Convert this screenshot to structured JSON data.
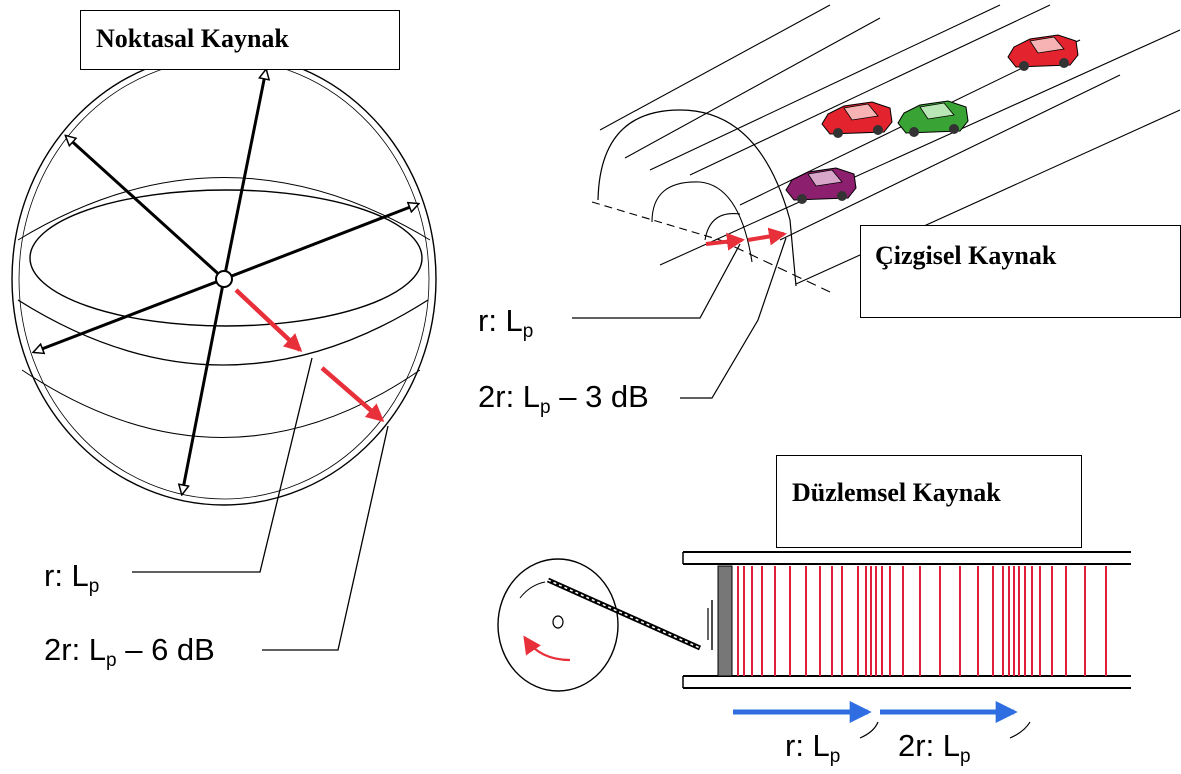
{
  "titles": {
    "point": "Noktasal Kaynak",
    "line": "Çizgisel Kaynak",
    "plane": "Düzlemsel Kaynak"
  },
  "point_labels": {
    "near_prefix": "r: L",
    "near_sub": "p",
    "far_prefix": "2r: L",
    "far_sub": "p",
    "far_suffix": " – 6 dB"
  },
  "line_labels": {
    "near_prefix": "r: L",
    "near_sub": "p",
    "far_prefix": "2r: L",
    "far_sub": "p",
    "far_suffix": " – 3 dB"
  },
  "plane_labels": {
    "near_prefix": "r: L",
    "near_sub": "p",
    "far_prefix": "2r: L",
    "far_sub": "p"
  },
  "colors": {
    "arrow_red": "#e8303a",
    "arrow_blue": "#2e6ee0",
    "wave_lines": "#e0203a",
    "car_red": "#e3232e",
    "car_green": "#3aa335",
    "car_purple": "#8c1f6e"
  }
}
